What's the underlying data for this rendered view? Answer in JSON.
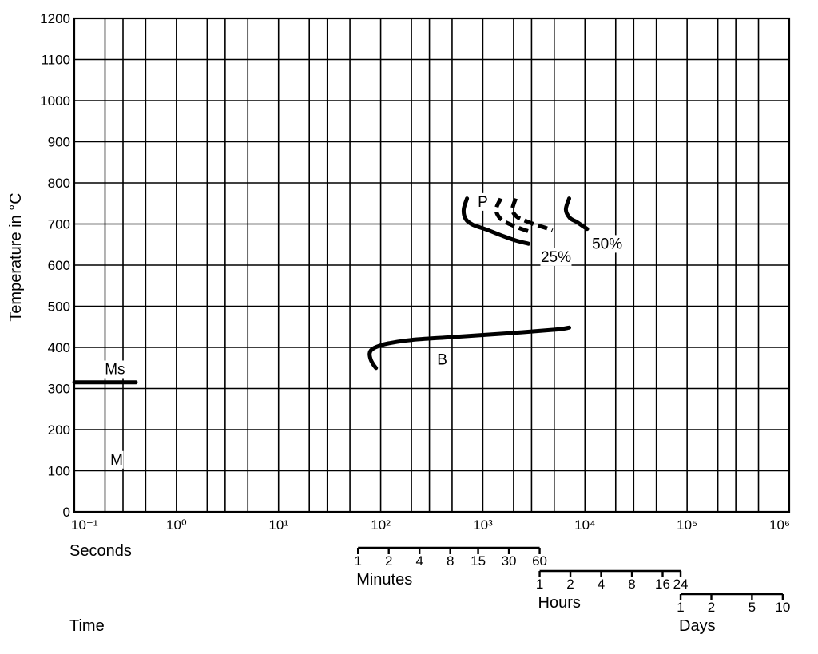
{
  "chart_data": {
    "type": "line",
    "title": "",
    "xlabel": "Time",
    "ylabel": "Temperature in °C",
    "x_scale": "log",
    "xlim": [
      0.1,
      1000000
    ],
    "ylim": [
      0,
      1200
    ],
    "grid": true,
    "y_ticks": [
      "0",
      "100",
      "200",
      "300",
      "400",
      "500",
      "600",
      "700",
      "800",
      "900",
      "1000",
      "1100",
      "1200"
    ],
    "x_ticks": [
      {
        "label": "10⁻¹",
        "value": 0.1
      },
      {
        "label": "10⁰",
        "value": 1
      },
      {
        "label": "10¹",
        "value": 10
      },
      {
        "label": "10²",
        "value": 100
      },
      {
        "label": "10³",
        "value": 1000
      },
      {
        "label": "10⁴",
        "value": 10000
      },
      {
        "label": "10⁵",
        "value": 100000
      },
      {
        "label": "10⁶",
        "value": 1000000
      }
    ],
    "time_scales": [
      {
        "label": "Seconds",
        "ticks": []
      },
      {
        "label": "Minutes",
        "seconds_per_unit": 60,
        "from": 1,
        "to": 60,
        "ticks": [
          {
            "label": "1",
            "value": 1
          },
          {
            "label": "2",
            "value": 2
          },
          {
            "label": "4",
            "value": 4
          },
          {
            "label": "8",
            "value": 8
          },
          {
            "label": "15",
            "value": 15
          },
          {
            "label": "30",
            "value": 30
          },
          {
            "label": "60",
            "value": 60
          }
        ]
      },
      {
        "label": "Hours",
        "seconds_per_unit": 3600,
        "from": 1,
        "to": 24,
        "ticks": [
          {
            "label": "1",
            "value": 1
          },
          {
            "label": "2",
            "value": 2
          },
          {
            "label": "4",
            "value": 4
          },
          {
            "label": "8",
            "value": 8
          },
          {
            "label": "16",
            "value": 16
          },
          {
            "label": "24",
            "value": 24
          }
        ]
      },
      {
        "label": "Days",
        "seconds_per_unit": 86400,
        "from": 1,
        "to": 10,
        "ticks": [
          {
            "label": "1",
            "value": 1
          },
          {
            "label": "2",
            "value": 2
          },
          {
            "label": "5",
            "value": 5
          },
          {
            "label": "10",
            "value": 10
          }
        ]
      }
    ],
    "series": [
      {
        "label": "Ms",
        "style": "solid",
        "x": [
          0.1,
          0.4
        ],
        "y": [
          315,
          315
        ]
      },
      {
        "label": "B",
        "style": "solid",
        "x": [
          90,
          85,
          80,
          78,
          82,
          95,
          120,
          200,
          500,
          1500,
          5000,
          7000
        ],
        "y": [
          350,
          358,
          370,
          385,
          395,
          403,
          410,
          418,
          425,
          433,
          443,
          448
        ]
      },
      {
        "label": "P",
        "style": "solid",
        "x": [
          700,
          650,
          680,
          800,
          1100,
          1600,
          2100,
          2800
        ],
        "y": [
          762,
          735,
          712,
          698,
          686,
          670,
          660,
          652
        ]
      },
      {
        "label": "25%",
        "style": "dashed",
        "x": [
          1500,
          1350,
          1500,
          1900,
          2400,
          3000
        ],
        "y": [
          762,
          735,
          712,
          698,
          688,
          680
        ]
      },
      {
        "label": "25%",
        "style": "dashed",
        "x": [
          2100,
          1950,
          2150,
          2600,
          3300,
          4200,
          4800
        ],
        "y": [
          762,
          735,
          718,
          708,
          698,
          690,
          684
        ]
      },
      {
        "label": "50%",
        "style": "solid",
        "x": [
          7000,
          6500,
          7100,
          8300,
          9400,
          10500
        ],
        "y": [
          762,
          735,
          715,
          705,
          696,
          688
        ]
      }
    ],
    "annotations": [
      {
        "text": "Ms",
        "x": 0.25,
        "y": 335
      },
      {
        "text": "M",
        "x": 0.26,
        "y": 115
      },
      {
        "text": "B",
        "x": 400,
        "y": 358
      },
      {
        "text": "P",
        "x": 1000,
        "y": 742
      },
      {
        "text": "25%",
        "x": 5200,
        "y": 608
      },
      {
        "text": "50%",
        "x": 16500,
        "y": 640
      }
    ]
  }
}
